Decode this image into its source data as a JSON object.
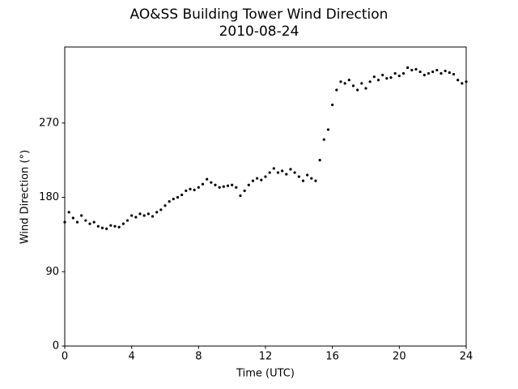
{
  "chart_data": {
    "type": "scatter",
    "title": "AO&SS Building Tower Wind Direction",
    "subtitle": "2010-08-24",
    "x_label": "Time (UTC)",
    "y_label": "Wind Direction (°)",
    "color": "#000000",
    "xlim": [
      0,
      24
    ],
    "xticks": [
      0,
      4,
      8,
      12,
      16,
      20,
      24
    ],
    "ylim": [
      0,
      362
    ],
    "yticks": [
      0,
      90,
      180,
      270
    ],
    "grid": false,
    "x": [
      0,
      0.25,
      0.5,
      0.75,
      1,
      1.25,
      1.5,
      1.75,
      2,
      2.25,
      2.5,
      2.75,
      3,
      3.25,
      3.5,
      3.75,
      4,
      4.25,
      4.5,
      4.75,
      5,
      5.25,
      5.5,
      5.75,
      6,
      6.25,
      6.5,
      6.75,
      7,
      7.25,
      7.5,
      7.75,
      8,
      8.25,
      8.5,
      8.75,
      9,
      9.25,
      9.5,
      9.75,
      10,
      10.25,
      10.5,
      10.75,
      11,
      11.25,
      11.5,
      11.75,
      12,
      12.25,
      12.5,
      12.75,
      13,
      13.25,
      13.5,
      13.75,
      14,
      14.25,
      14.5,
      14.75,
      15,
      15.25,
      15.5,
      15.75,
      16,
      16.25,
      16.5,
      16.75,
      17,
      17.25,
      17.5,
      17.75,
      18,
      18.25,
      18.5,
      18.75,
      19,
      19.25,
      19.5,
      19.75,
      20,
      20.25,
      20.5,
      20.75,
      21,
      21.25,
      21.5,
      21.75,
      22,
      22.25,
      22.5,
      22.75,
      23,
      23.25,
      23.5,
      23.75,
      24
    ],
    "values": [
      150,
      162,
      155,
      150,
      158,
      152,
      148,
      150,
      145,
      143,
      142,
      146,
      145,
      144,
      148,
      152,
      158,
      156,
      160,
      158,
      160,
      157,
      162,
      165,
      170,
      175,
      178,
      180,
      183,
      188,
      190,
      189,
      192,
      196,
      202,
      198,
      195,
      192,
      193,
      194,
      195,
      192,
      182,
      188,
      195,
      200,
      203,
      201,
      205,
      210,
      215,
      210,
      212,
      208,
      214,
      210,
      205,
      200,
      207,
      203,
      200,
      225,
      250,
      262,
      292,
      310,
      320,
      318,
      322,
      315,
      310,
      318,
      312,
      320,
      326,
      322,
      328,
      324,
      325,
      330,
      327,
      330,
      337,
      334,
      335,
      332,
      328,
      330,
      332,
      334,
      330,
      333,
      331,
      329,
      322,
      318,
      320
    ]
  }
}
